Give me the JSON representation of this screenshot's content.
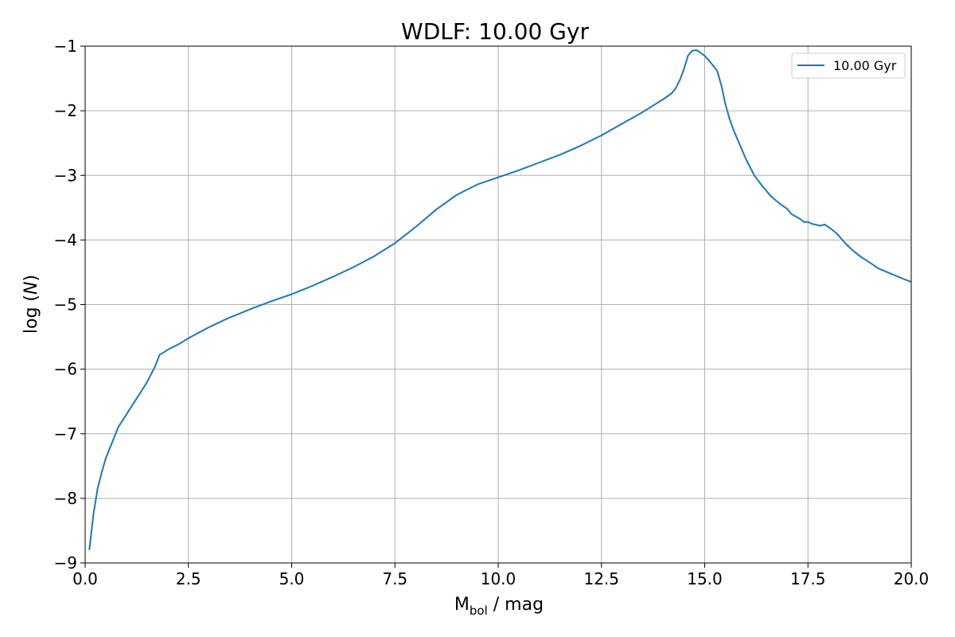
{
  "chart_data": {
    "type": "line",
    "title": "WDLF: 10.00 Gyr",
    "xlabel": {
      "main": "M",
      "sub": "bol",
      "rest": " / mag"
    },
    "ylabel": {
      "prefix": "log (",
      "italic": "N",
      "suffix": ")"
    },
    "xlim": [
      0.0,
      20.0
    ],
    "ylim": [
      -9,
      -1
    ],
    "xticks": [
      0.0,
      2.5,
      5.0,
      7.5,
      10.0,
      12.5,
      15.0,
      17.5,
      20.0
    ],
    "xtick_labels": [
      "0.0",
      "2.5",
      "5.0",
      "7.5",
      "10.0",
      "12.5",
      "15.0",
      "17.5",
      "20.0"
    ],
    "yticks": [
      -9,
      -8,
      -7,
      -6,
      -5,
      -4,
      -3,
      -2,
      -1
    ],
    "ytick_labels": [
      "−9",
      "−8",
      "−7",
      "−6",
      "−5",
      "−4",
      "−3",
      "−2",
      "−1"
    ],
    "grid": true,
    "legend_position": "top-right",
    "series": [
      {
        "name": "10.00 Gyr",
        "color": "#1f77b4",
        "x": [
          0.1,
          0.2,
          0.3,
          0.4,
          0.5,
          0.6,
          0.8,
          1.0,
          1.2,
          1.5,
          1.7,
          1.8,
          2.0,
          2.3,
          2.5,
          3.0,
          3.5,
          3.7,
          4.0,
          4.5,
          5.0,
          5.5,
          6.0,
          6.5,
          7.0,
          7.5,
          8.0,
          8.5,
          9.0,
          9.5,
          10.0,
          10.5,
          11.0,
          11.5,
          12.0,
          12.5,
          13.0,
          13.5,
          14.0,
          14.2,
          14.3,
          14.4,
          14.5,
          14.6,
          14.7,
          14.8,
          14.9,
          15.0,
          15.1,
          15.2,
          15.3,
          15.4,
          15.5,
          15.6,
          15.7,
          15.8,
          15.9,
          16.0,
          16.2,
          16.4,
          16.6,
          16.8,
          17.0,
          17.1,
          17.3,
          17.4,
          17.5,
          17.6,
          17.8,
          17.9,
          18.0,
          18.2,
          18.4,
          18.6,
          18.8,
          19.0,
          19.2,
          19.5,
          19.8,
          20.0
        ],
        "y": [
          -8.8,
          -8.25,
          -7.85,
          -7.6,
          -7.38,
          -7.22,
          -6.9,
          -6.7,
          -6.5,
          -6.2,
          -5.95,
          -5.78,
          -5.7,
          -5.6,
          -5.52,
          -5.35,
          -5.2,
          -5.15,
          -5.07,
          -4.95,
          -4.84,
          -4.71,
          -4.57,
          -4.42,
          -4.25,
          -4.05,
          -3.8,
          -3.53,
          -3.3,
          -3.14,
          -3.03,
          -2.92,
          -2.8,
          -2.68,
          -2.54,
          -2.38,
          -2.2,
          -2.02,
          -1.82,
          -1.73,
          -1.65,
          -1.52,
          -1.35,
          -1.14,
          -1.07,
          -1.06,
          -1.1,
          -1.15,
          -1.22,
          -1.3,
          -1.38,
          -1.6,
          -1.9,
          -2.12,
          -2.3,
          -2.45,
          -2.6,
          -2.75,
          -3.0,
          -3.17,
          -3.32,
          -3.43,
          -3.52,
          -3.6,
          -3.67,
          -3.72,
          -3.72,
          -3.75,
          -3.78,
          -3.76,
          -3.8,
          -3.9,
          -4.05,
          -4.17,
          -4.27,
          -4.35,
          -4.44,
          -4.52,
          -4.6,
          -4.65
        ]
      }
    ]
  }
}
